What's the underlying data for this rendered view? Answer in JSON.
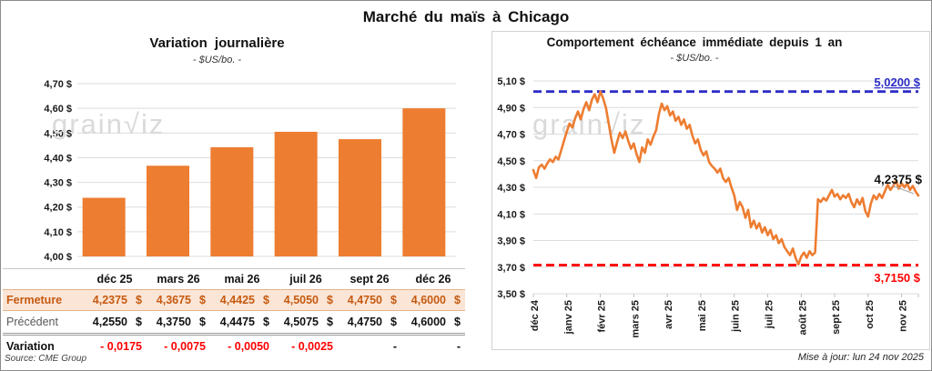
{
  "page": {
    "title": "Marché du maïs à Chicago",
    "updated": "Mise à jour: lun 24 nov 2025",
    "source": "Source: CME Group",
    "watermark": "grain√iz"
  },
  "colors": {
    "orange": "#ED7D31",
    "blue": "#2D2DC7",
    "red": "#FF0000",
    "peach": "#FBE5D6",
    "brown": "#C55A11",
    "grid": "#DCDCDC",
    "axis": "#BFBFBF",
    "leader": "#A6A6A6"
  },
  "table": {
    "headers": [
      "",
      "déc 25",
      "mars 26",
      "mai 26",
      "juil 26",
      "sept 26",
      "déc 26"
    ],
    "rows": [
      {
        "label": "Fermeture",
        "style": "fermeture",
        "cells": [
          {
            "n": "4,2375",
            "c": "$"
          },
          {
            "n": "4,3675",
            "c": "$"
          },
          {
            "n": "4,4425",
            "c": "$"
          },
          {
            "n": "4,5050",
            "c": "$"
          },
          {
            "n": "4,4750",
            "c": "$"
          },
          {
            "n": "4,6000",
            "c": "$"
          }
        ]
      },
      {
        "label": "Précédent",
        "style": "precedent",
        "cells": [
          {
            "n": "4,2550",
            "c": "$"
          },
          {
            "n": "4,3750",
            "c": "$"
          },
          {
            "n": "4,4475",
            "c": "$"
          },
          {
            "n": "4,5075",
            "c": "$"
          },
          {
            "n": "4,4750",
            "c": "$"
          },
          {
            "n": "4,6000",
            "c": "$"
          }
        ]
      },
      {
        "label": "Variation",
        "style": "variation",
        "cells": [
          {
            "n": "- 0,0175",
            "neg": true
          },
          {
            "n": "- 0,0075",
            "neg": true
          },
          {
            "n": "- 0,0050",
            "neg": true
          },
          {
            "n": "- 0,0025",
            "neg": true
          },
          {
            "n": "-"
          },
          {
            "n": "-"
          }
        ]
      }
    ]
  },
  "chart_data": [
    {
      "type": "bar",
      "title": "Variation journalière",
      "subtitle": "- $US/bo. -",
      "categories": [
        "déc 25",
        "mars 26",
        "mai 26",
        "juil 26",
        "sept 26",
        "déc 26"
      ],
      "values": [
        4.2375,
        4.3675,
        4.4425,
        4.505,
        4.475,
        4.6
      ],
      "ylim": [
        4.0,
        4.7
      ],
      "yticks": [
        4.7,
        4.6,
        4.5,
        4.4,
        4.3,
        4.2,
        4.1,
        4.0
      ],
      "ytick_labels": [
        "4,70 $",
        "4,60 $",
        "4,50 $",
        "4,40 $",
        "4,30 $",
        "4,20 $",
        "4,10 $",
        "4,00 $"
      ],
      "grid": true
    },
    {
      "type": "line",
      "title": "Comportement échéance immédiate depuis 1 an",
      "subtitle": "- $US/bo. -",
      "x_labels": [
        "déc 24",
        "janv 25",
        "févr 25",
        "mars 25",
        "avr 25",
        "mai 25",
        "juin 25",
        "juil 25",
        "août 25",
        "sept 25",
        "oct 25",
        "nov 25"
      ],
      "ylim": [
        3.5,
        5.1
      ],
      "yticks": [
        5.1,
        4.9,
        4.7,
        4.5,
        4.3,
        4.1,
        3.9,
        3.7,
        3.5
      ],
      "ytick_labels": [
        "5,10 $",
        "4,90 $",
        "4,70 $",
        "4,50 $",
        "4,30 $",
        "4,10 $",
        "3,90 $",
        "3,70 $",
        "3,50 $"
      ],
      "grid": true,
      "series": [
        {
          "name": "échéance immédiate",
          "values": [
            4.43,
            4.37,
            4.45,
            4.47,
            4.44,
            4.48,
            4.51,
            4.49,
            4.53,
            4.51,
            4.58,
            4.65,
            4.72,
            4.78,
            4.75,
            4.82,
            4.87,
            4.81,
            4.89,
            4.94,
            4.88,
            4.96,
            5.0,
            4.94,
            5.02,
            4.97,
            4.9,
            4.78,
            4.66,
            4.56,
            4.64,
            4.71,
            4.67,
            4.72,
            4.65,
            4.59,
            4.63,
            4.55,
            4.49,
            4.6,
            4.56,
            4.66,
            4.62,
            4.68,
            4.73,
            4.85,
            4.93,
            4.88,
            4.91,
            4.84,
            4.87,
            4.8,
            4.83,
            4.77,
            4.81,
            4.74,
            4.77,
            4.69,
            4.63,
            4.66,
            4.58,
            4.54,
            4.57,
            4.49,
            4.46,
            4.44,
            4.41,
            4.44,
            4.37,
            4.34,
            4.37,
            4.3,
            4.24,
            4.13,
            4.19,
            4.15,
            4.07,
            4.13,
            4.0,
            4.05,
            3.99,
            4.03,
            3.96,
            4.0,
            3.94,
            3.98,
            3.91,
            3.94,
            3.88,
            3.91,
            3.85,
            3.82,
            3.79,
            3.84,
            3.77,
            3.72,
            3.78,
            3.81,
            3.77,
            3.82,
            3.79,
            3.81,
            4.21,
            4.19,
            4.22,
            4.2,
            4.24,
            4.28,
            4.23,
            4.25,
            4.21,
            4.24,
            4.22,
            4.25,
            4.19,
            4.15,
            4.21,
            4.17,
            4.22,
            4.12,
            4.08,
            4.18,
            4.24,
            4.21,
            4.25,
            4.22,
            4.27,
            4.32,
            4.28,
            4.31,
            4.35,
            4.29,
            4.33,
            4.3,
            4.33,
            4.28,
            4.31,
            4.27,
            4.2375
          ]
        }
      ],
      "annotations": {
        "high": {
          "value": 5.02,
          "label": "5,0200 $"
        },
        "low": {
          "value": 3.715,
          "label": "3,7150 $"
        },
        "last": {
          "value": 4.2375,
          "label": "4,2375 $"
        }
      }
    }
  ]
}
